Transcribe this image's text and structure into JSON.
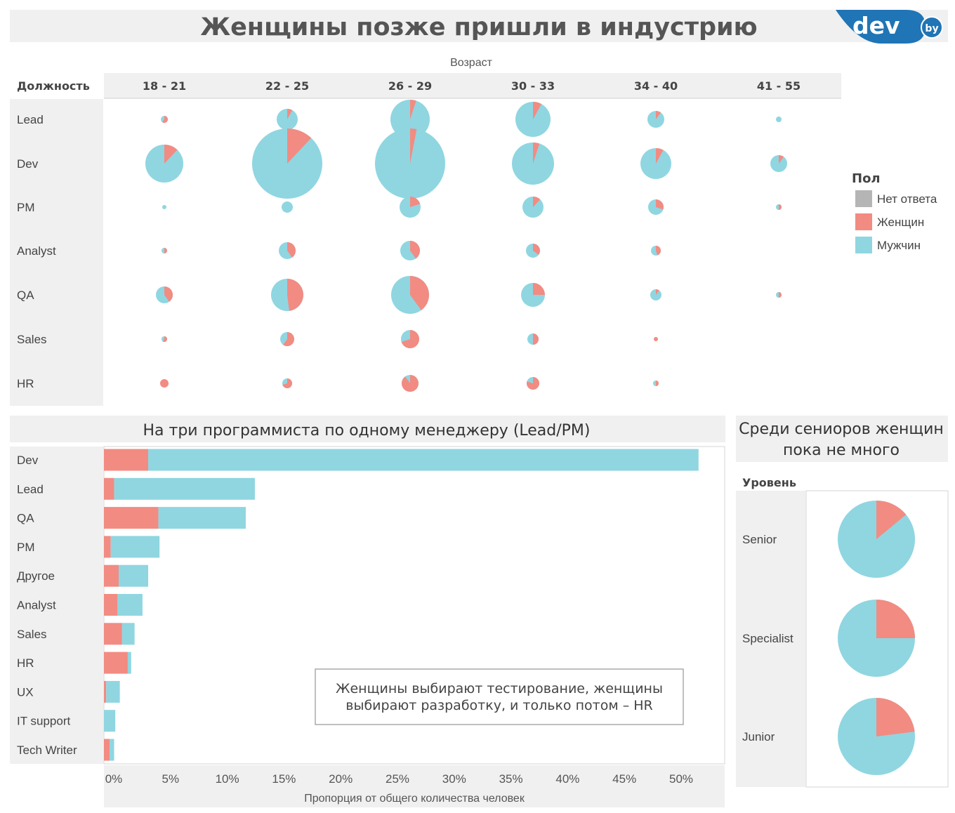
{
  "title": "Женщины позже пришли в индустрию",
  "logo": {
    "text": "dev",
    "suffix": "by"
  },
  "colors": {
    "none": "#b5b5b5",
    "female": "#f28b82",
    "male": "#8fd6e1"
  },
  "legend": {
    "title": "Пол",
    "items": [
      {
        "label": "Нет ответа",
        "color": "#b5b5b5"
      },
      {
        "label": "Женщин",
        "color": "#f28b82"
      },
      {
        "label": "Мужчин",
        "color": "#8fd6e1"
      }
    ]
  },
  "chart_data": [
    {
      "type": "pie-matrix",
      "column_header": "Возраст",
      "row_header": "Должность",
      "columns": [
        "18 - 21",
        "22 - 25",
        "26 - 29",
        "30 - 33",
        "34 - 40",
        "41 - 55"
      ],
      "rows": [
        "Lead",
        "Dev",
        "PM",
        "Analyst",
        "QA",
        "Sales",
        "HR"
      ],
      "cells": [
        [
          {
            "size": 5,
            "female": 0.6
          },
          {
            "size": 15,
            "female": 0.08
          },
          {
            "size": 28,
            "female": 0.05
          },
          {
            "size": 25,
            "female": 0.08
          },
          {
            "size": 12,
            "female": 0.1
          },
          {
            "size": 4,
            "female": 0.0
          }
        ],
        [
          {
            "size": 27,
            "female": 0.12
          },
          {
            "size": 50,
            "female": 0.12
          },
          {
            "size": 50,
            "female": 0.03
          },
          {
            "size": 30,
            "female": 0.05
          },
          {
            "size": 22,
            "female": 0.08
          },
          {
            "size": 12,
            "female": 0.1
          }
        ],
        [
          {
            "size": 3,
            "female": 0.0
          },
          {
            "size": 8,
            "female": 0.0
          },
          {
            "size": 15,
            "female": 0.2
          },
          {
            "size": 15,
            "female": 0.12
          },
          {
            "size": 11,
            "female": 0.3
          },
          {
            "size": 4,
            "female": 0.5
          }
        ],
        [
          {
            "size": 4,
            "female": 0.5
          },
          {
            "size": 12,
            "female": 0.4
          },
          {
            "size": 14,
            "female": 0.4
          },
          {
            "size": 10,
            "female": 0.35
          },
          {
            "size": 7,
            "female": 0.45
          },
          {
            "size": 0,
            "female": 0
          }
        ],
        [
          {
            "size": 12,
            "female": 0.4
          },
          {
            "size": 23,
            "female": 0.48
          },
          {
            "size": 27,
            "female": 0.4
          },
          {
            "size": 17,
            "female": 0.25
          },
          {
            "size": 8,
            "female": 0.1
          },
          {
            "size": 4,
            "female": 0.5
          }
        ],
        [
          {
            "size": 4,
            "female": 0.6
          },
          {
            "size": 10,
            "female": 0.6
          },
          {
            "size": 13,
            "female": 0.7
          },
          {
            "size": 8,
            "female": 0.5
          },
          {
            "size": 3,
            "female": 1.0
          },
          {
            "size": 0,
            "female": 0
          }
        ],
        [
          {
            "size": 6,
            "female": 1.0
          },
          {
            "size": 7,
            "female": 0.7
          },
          {
            "size": 12,
            "female": 0.9
          },
          {
            "size": 9,
            "female": 0.8
          },
          {
            "size": 4,
            "female": 0.5
          },
          {
            "size": 0,
            "female": 0
          }
        ]
      ]
    },
    {
      "type": "bar",
      "title": "На три программиста по одному менеджеру (Lead/PM)",
      "xlabel": "Пропорция от общего количества человек",
      "xlim": [
        0,
        54
      ],
      "xticks": [
        "0%",
        "5%",
        "10%",
        "15%",
        "20%",
        "25%",
        "30%",
        "35%",
        "40%",
        "45%",
        "50%"
      ],
      "categories": [
        "Dev",
        "Lead",
        "QA",
        "PM",
        "Другое",
        "Analyst",
        "Sales",
        "HR",
        "UX",
        "IT support",
        "Tech Writer"
      ],
      "series": [
        {
          "name": "Женщин",
          "values": [
            3.9,
            0.9,
            4.8,
            0.6,
            1.3,
            1.2,
            1.6,
            2.1,
            0.2,
            0.0,
            0.5
          ]
        },
        {
          "name": "Мужчин",
          "values": [
            48.5,
            12.4,
            7.7,
            4.3,
            2.6,
            2.2,
            1.1,
            0.3,
            1.2,
            1.0,
            0.4
          ]
        }
      ],
      "annotation": [
        "Женщины выбирают тестирование, женщины",
        "выбирают разработку, и только потом – HR"
      ]
    },
    {
      "type": "pie",
      "title": [
        "Среди сениоров женщин",
        "пока не много"
      ],
      "row_header": "Уровень",
      "categories": [
        "Senior",
        "Specialist",
        "Junior"
      ],
      "series": [
        {
          "name": "Женщин",
          "values": [
            0.14,
            0.25,
            0.23
          ]
        },
        {
          "name": "Мужчин",
          "values": [
            0.86,
            0.75,
            0.77
          ]
        }
      ]
    }
  ]
}
